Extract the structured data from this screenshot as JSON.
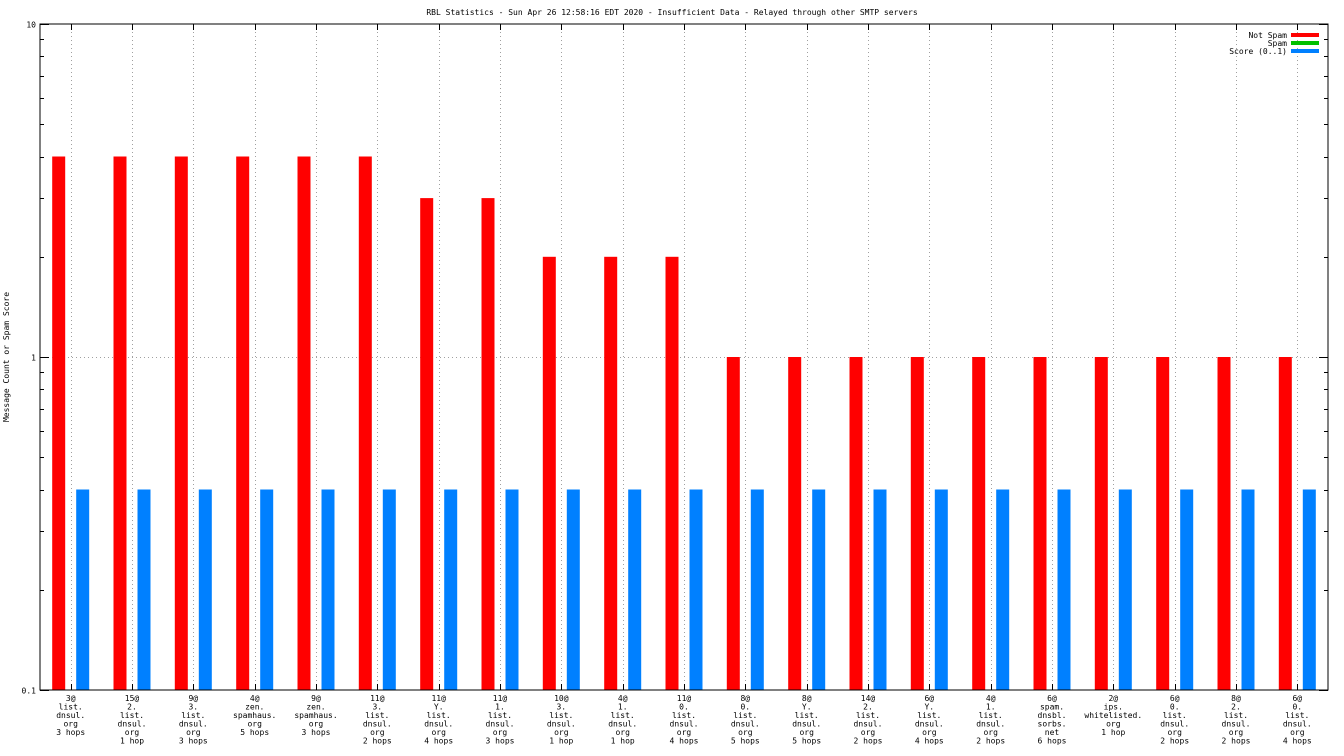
{
  "chart_data": {
    "type": "bar",
    "title": "RBL Statistics - Sun Apr 26 12:58:16 EDT 2020 - Insufficient Data - Relayed through other SMTP servers",
    "ylabel": "Message Count or Spam Score",
    "xlabel": "",
    "yscale": "log",
    "ylim": [
      0.1,
      10
    ],
    "yticks": [
      {
        "value": 10,
        "label": "10"
      },
      {
        "value": 1,
        "label": "1"
      },
      {
        "value": 0.1,
        "label": "0.1"
      }
    ],
    "grid": true,
    "legend_position": "top-right",
    "categories": [
      [
        "3@",
        "list.",
        "dnsul.",
        "org",
        "3 hops"
      ],
      [
        "15@",
        "2.",
        "list.",
        "dnsul.",
        "org",
        "1 hop"
      ],
      [
        "9@",
        "3.",
        "list.",
        "dnsul.",
        "org",
        "3 hops"
      ],
      [
        "4@",
        "zen.",
        "spamhaus.",
        "org",
        "5 hops"
      ],
      [
        "9@",
        "zen.",
        "spamhaus.",
        "org",
        "3 hops"
      ],
      [
        "11@",
        "3.",
        "list.",
        "dnsul.",
        "org",
        "2 hops"
      ],
      [
        "11@",
        "Y.",
        "list.",
        "dnsul.",
        "org",
        "4 hops"
      ],
      [
        "11@",
        "1.",
        "list.",
        "dnsul.",
        "org",
        "3 hops"
      ],
      [
        "10@",
        "3.",
        "list.",
        "dnsul.",
        "org",
        "1 hop"
      ],
      [
        "4@",
        "1.",
        "list.",
        "dnsul.",
        "org",
        "1 hop"
      ],
      [
        "11@",
        "0.",
        "list.",
        "dnsul.",
        "org",
        "4 hops"
      ],
      [
        "8@",
        "0.",
        "list.",
        "dnsul.",
        "org",
        "5 hops"
      ],
      [
        "8@",
        "Y.",
        "list.",
        "dnsul.",
        "org",
        "5 hops"
      ],
      [
        "14@",
        "2.",
        "list.",
        "dnsul.",
        "org",
        "2 hops"
      ],
      [
        "6@",
        "Y.",
        "list.",
        "dnsul.",
        "org",
        "4 hops"
      ],
      [
        "4@",
        "1.",
        "list.",
        "dnsul.",
        "org",
        "2 hops"
      ],
      [
        "6@",
        "spam.",
        "dnsbl.",
        "sorbs.",
        "net",
        "6 hops"
      ],
      [
        "2@",
        "ips.",
        "whitelisted.",
        "org",
        "1 hop"
      ],
      [
        "6@",
        "0.",
        "list.",
        "dnsul.",
        "org",
        "2 hops"
      ],
      [
        "8@",
        "2.",
        "list.",
        "dnsul.",
        "org",
        "2 hops"
      ],
      [
        "6@",
        "0.",
        "list.",
        "dnsul.",
        "org",
        "4 hops"
      ]
    ],
    "series": [
      {
        "name": "Not Spam",
        "color": "#ff0000",
        "values": [
          4,
          4,
          4,
          4,
          4,
          4,
          3,
          3,
          2,
          2,
          2,
          1,
          1,
          1,
          1,
          1,
          1,
          1,
          1,
          1,
          1
        ]
      },
      {
        "name": "Spam",
        "color": "#00c000",
        "values": [
          0,
          0,
          0,
          0,
          0,
          0,
          0,
          0,
          0,
          0,
          0,
          0,
          0,
          0,
          0,
          0,
          0,
          0,
          0,
          0,
          0
        ]
      },
      {
        "name": "Score (0..1)",
        "color": "#0080ff",
        "values": [
          0.4,
          0.4,
          0.4,
          0.4,
          0.4,
          0.4,
          0.4,
          0.4,
          0.4,
          0.4,
          0.4,
          0.4,
          0.4,
          0.4,
          0.4,
          0.4,
          0.4,
          0.4,
          0.4,
          0.4,
          0.4
        ]
      }
    ]
  }
}
